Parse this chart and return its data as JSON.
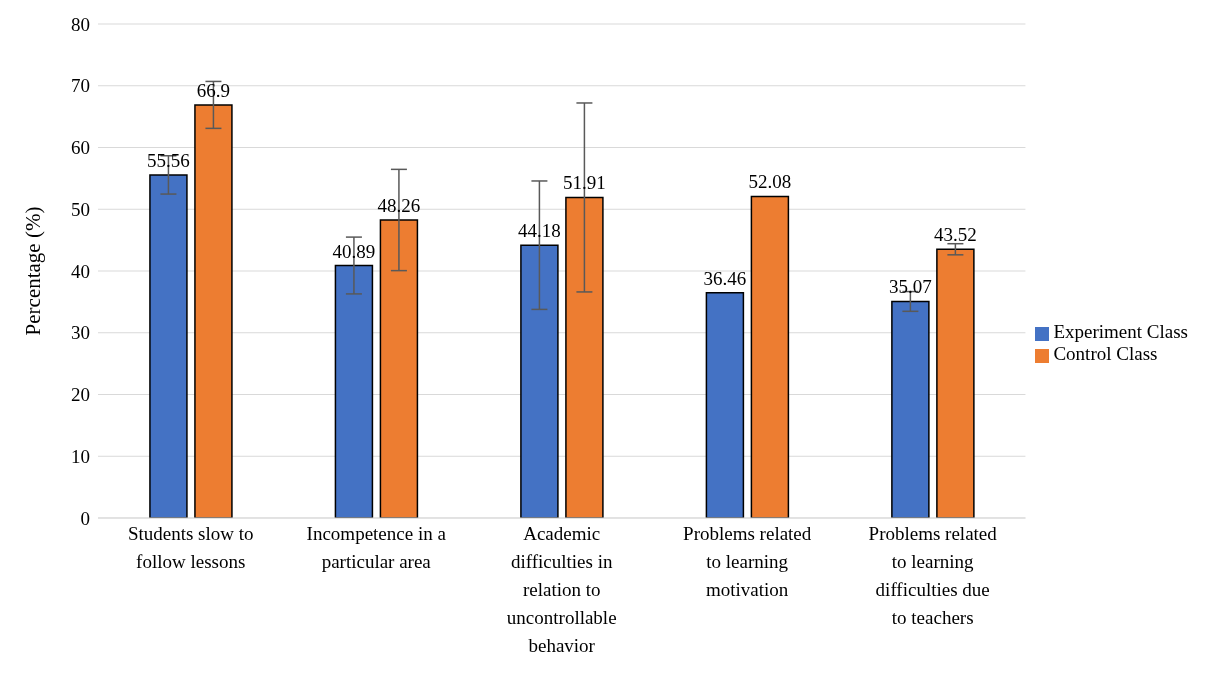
{
  "chart_data": {
    "type": "bar",
    "ylabel": "Percentage (%)",
    "categories": [
      "Students slow to follow lessons",
      "Incompetence in a particular area",
      "Academic difficulties in relation to uncontrollable behavior",
      "Problems related to learning motivation",
      "Problems related to learning difficulties due to teachers"
    ],
    "series": [
      {
        "name": "Experiment Class",
        "color": "#4472c4",
        "values": [
          55.56,
          40.89,
          44.18,
          36.46,
          35.07
        ],
        "errors": [
          3.1,
          4.6,
          10.4,
          null,
          1.6
        ]
      },
      {
        "name": "Control Class",
        "color": "#ed7d31",
        "values": [
          66.9,
          48.26,
          51.91,
          52.08,
          43.52
        ],
        "errors": [
          3.8,
          8.2,
          15.3,
          null,
          0.9
        ]
      }
    ],
    "ylim": [
      0,
      80
    ],
    "yticks": [
      0,
      10,
      20,
      30,
      40,
      50,
      60,
      70,
      80
    ],
    "grid": "y",
    "legend": "right",
    "data_labels": true
  }
}
